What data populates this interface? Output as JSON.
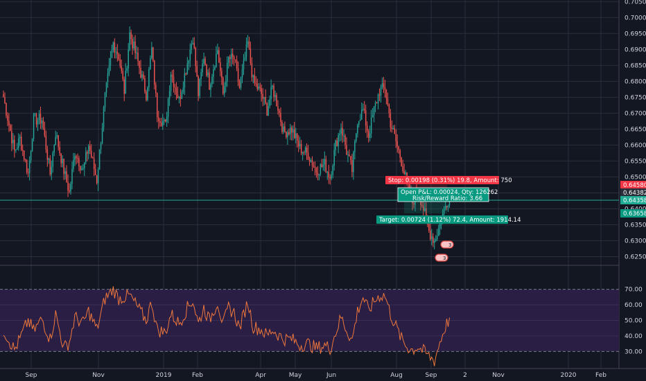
{
  "colors": {
    "background": "#131722",
    "grid": "#2a2e39",
    "up": "#26a69a",
    "down": "#ef5350",
    "rsi_line": "#f0783c",
    "rsi_band": "#2a1e44",
    "stop": "#f23645",
    "target": "#089981",
    "entry": "#22ab94"
  },
  "chart_data": [
    {
      "type": "candlestick",
      "title": "",
      "y_ticks": [
        "0.62500",
        "0.63000",
        "0.63500",
        "0.64000",
        "0.64500",
        "0.65000",
        "0.65500",
        "0.66000",
        "0.66500",
        "0.67000",
        "0.67500",
        "0.68000",
        "0.68500",
        "0.69000",
        "0.69500",
        "0.70000",
        "0.70500"
      ],
      "ylim": [
        0.6225,
        0.7055
      ],
      "x_ticks": [
        "Sep",
        "Nov",
        "2019",
        "Feb",
        "Apr",
        "May",
        "Jun",
        "Aug",
        "Sep",
        "2",
        "Nov",
        "2020",
        "Feb"
      ],
      "price_labels": [
        {
          "text": "0.64580",
          "role": "stop"
        },
        {
          "text": "0.64382",
          "role": "last"
        },
        {
          "text": "0.64358",
          "role": "entry"
        },
        {
          "text": "0.63658",
          "role": "target"
        }
      ],
      "position": {
        "stop_label": "Stop: 0.00198 (0.31%) 19.8, Amount: 750",
        "pnl_label": "Open P&L: 0.00024, Qty: 126262",
        "rr_label": "Risk/Reward Ratio: 3.66",
        "target_label": "Target: 0.00724 (1.12%) 72.4, Amount: 1914.14",
        "stop": 0.6458,
        "entry": 0.64358,
        "target": 0.63658
      },
      "events": [
        "3",
        "3"
      ],
      "anchors": [
        [
          0,
          0.675
        ],
        [
          8,
          0.658
        ],
        [
          12,
          0.662
        ],
        [
          18,
          0.651
        ],
        [
          22,
          0.668
        ],
        [
          28,
          0.668
        ],
        [
          34,
          0.651
        ],
        [
          38,
          0.664
        ],
        [
          44,
          0.652
        ],
        [
          48,
          0.645
        ],
        [
          52,
          0.658
        ],
        [
          58,
          0.652
        ],
        [
          62,
          0.66
        ],
        [
          68,
          0.649
        ],
        [
          74,
          0.675
        ],
        [
          80,
          0.692
        ],
        [
          84,
          0.688
        ],
        [
          88,
          0.677
        ],
        [
          92,
          0.695
        ],
        [
          98,
          0.686
        ],
        [
          104,
          0.676
        ],
        [
          108,
          0.69
        ],
        [
          112,
          0.67
        ],
        [
          118,
          0.666
        ],
        [
          122,
          0.683
        ],
        [
          128,
          0.674
        ],
        [
          134,
          0.686
        ],
        [
          138,
          0.694
        ],
        [
          142,
          0.676
        ],
        [
          146,
          0.688
        ],
        [
          150,
          0.679
        ],
        [
          156,
          0.69
        ],
        [
          160,
          0.676
        ],
        [
          164,
          0.687
        ],
        [
          168,
          0.687
        ],
        [
          172,
          0.678
        ],
        [
          178,
          0.692
        ],
        [
          182,
          0.68
        ],
        [
          188,
          0.676
        ],
        [
          192,
          0.671
        ],
        [
          196,
          0.678
        ],
        [
          200,
          0.672
        ],
        [
          204,
          0.664
        ],
        [
          210,
          0.665
        ],
        [
          216,
          0.659
        ],
        [
          222,
          0.657
        ],
        [
          228,
          0.652
        ],
        [
          234,
          0.654
        ],
        [
          238,
          0.65
        ],
        [
          242,
          0.66
        ],
        [
          246,
          0.666
        ],
        [
          250,
          0.658
        ],
        [
          254,
          0.652
        ],
        [
          258,
          0.668
        ],
        [
          262,
          0.671
        ],
        [
          266,
          0.663
        ],
        [
          270,
          0.671
        ],
        [
          274,
          0.677
        ],
        [
          278,
          0.678
        ],
        [
          282,
          0.667
        ],
        [
          286,
          0.661
        ],
        [
          290,
          0.655
        ],
        [
          294,
          0.648
        ],
        [
          298,
          0.642
        ],
        [
          302,
          0.646
        ],
        [
          306,
          0.64
        ],
        [
          310,
          0.633
        ],
        [
          314,
          0.63
        ],
        [
          318,
          0.635
        ],
        [
          322,
          0.641
        ],
        [
          325,
          0.644
        ]
      ]
    },
    {
      "type": "line",
      "title": "",
      "y_ticks": [
        "30.00",
        "40.00",
        "50.00",
        "60.00",
        "70.00"
      ],
      "ylim": [
        19,
        85
      ],
      "band": [
        30,
        70
      ],
      "anchors": [
        [
          0,
          44
        ],
        [
          8,
          31
        ],
        [
          12,
          38
        ],
        [
          18,
          50
        ],
        [
          22,
          43
        ],
        [
          28,
          51
        ],
        [
          34,
          38
        ],
        [
          38,
          54
        ],
        [
          44,
          32
        ],
        [
          48,
          36
        ],
        [
          52,
          52
        ],
        [
          58,
          48
        ],
        [
          62,
          56
        ],
        [
          68,
          44
        ],
        [
          74,
          64
        ],
        [
          80,
          70
        ],
        [
          84,
          64
        ],
        [
          88,
          65
        ],
        [
          92,
          66
        ],
        [
          98,
          58
        ],
        [
          104,
          50
        ],
        [
          108,
          62
        ],
        [
          112,
          44
        ],
        [
          118,
          42
        ],
        [
          122,
          54
        ],
        [
          128,
          48
        ],
        [
          134,
          58
        ],
        [
          138,
          63
        ],
        [
          142,
          48
        ],
        [
          146,
          58
        ],
        [
          150,
          50
        ],
        [
          156,
          62
        ],
        [
          160,
          47
        ],
        [
          164,
          58
        ],
        [
          168,
          55
        ],
        [
          172,
          45
        ],
        [
          178,
          62
        ],
        [
          182,
          46
        ],
        [
          188,
          44
        ],
        [
          192,
          40
        ],
        [
          196,
          44
        ],
        [
          200,
          41
        ],
        [
          204,
          38
        ],
        [
          210,
          38
        ],
        [
          216,
          34
        ],
        [
          222,
          35
        ],
        [
          228,
          32
        ],
        [
          234,
          34
        ],
        [
          238,
          32
        ],
        [
          242,
          42
        ],
        [
          246,
          52
        ],
        [
          250,
          44
        ],
        [
          254,
          37
        ],
        [
          258,
          56
        ],
        [
          262,
          65
        ],
        [
          266,
          56
        ],
        [
          270,
          62
        ],
        [
          274,
          66
        ],
        [
          278,
          66
        ],
        [
          282,
          54
        ],
        [
          286,
          46
        ],
        [
          290,
          38
        ],
        [
          294,
          33
        ],
        [
          298,
          31
        ],
        [
          302,
          33
        ],
        [
          306,
          30
        ],
        [
          310,
          27
        ],
        [
          314,
          24
        ],
        [
          318,
          36
        ],
        [
          322,
          46
        ],
        [
          325,
          51
        ]
      ]
    }
  ]
}
